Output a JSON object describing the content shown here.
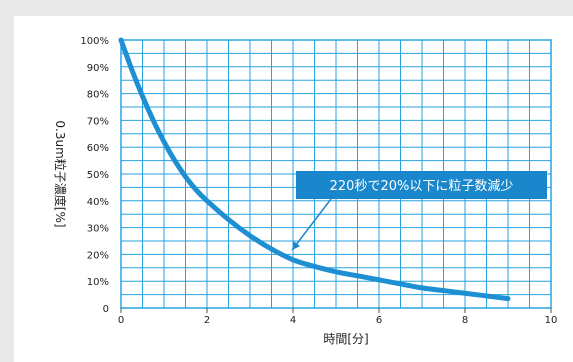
{
  "chart_data": {
    "type": "line",
    "xlabel": "時間[分]",
    "ylabel": "0.3um粒子濃度[%]",
    "xlim": [
      0,
      10
    ],
    "ylim": [
      0,
      100
    ],
    "x_ticks": [
      "0",
      "2",
      "4",
      "6",
      "8",
      "10"
    ],
    "y_ticks": [
      "0",
      "10%",
      "20%",
      "30%",
      "40%",
      "50%",
      "60%",
      "70%",
      "80%",
      "90%",
      "100%"
    ],
    "grid": true,
    "series": [
      {
        "x": [
          0,
          0.25,
          0.5,
          0.75,
          1,
          1.25,
          1.5,
          1.75,
          2,
          2.5,
          3,
          3.5,
          4,
          4.5,
          5,
          5.5,
          6,
          6.5,
          7,
          7.5,
          8,
          8.5,
          9
        ],
        "values": [
          100,
          89,
          79,
          70,
          62,
          55,
          49,
          44,
          40,
          33,
          27,
          22,
          18,
          15.5,
          13.5,
          12,
          10.5,
          9,
          7.5,
          6.5,
          5.5,
          4.5,
          3.5
        ]
      }
    ],
    "annotation": {
      "text": "220秒で20%以下に粒子数減少",
      "point": [
        4,
        19
      ]
    },
    "colors": {
      "line": "#1d8fd2",
      "grid": "#29a3e0",
      "annotation_bg": "#1a87cc"
    }
  }
}
